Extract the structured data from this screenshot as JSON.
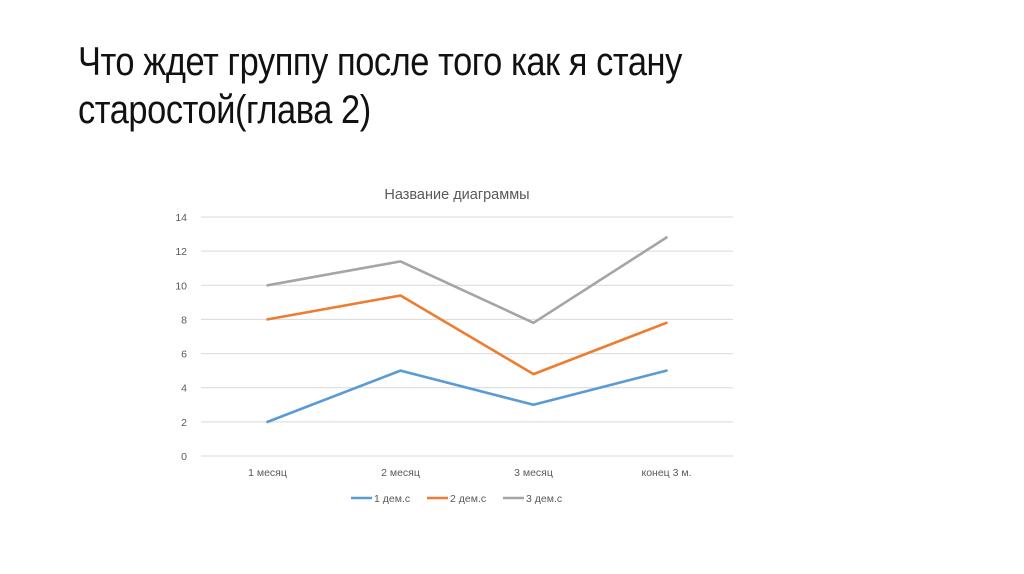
{
  "slide": {
    "title_line1": "Что ждет группу после того как я стану",
    "title_line2": "старостой(глава 2)"
  },
  "chart_data": {
    "type": "line",
    "title": "Название диаграммы",
    "xlabel": "",
    "ylabel": "",
    "categories": [
      "1 месяц",
      "2 месяц",
      "3 месяц",
      "конец 3 м."
    ],
    "series": [
      {
        "name": "1 дем.c",
        "color": "#5B9BD5",
        "values": [
          2,
          5,
          3,
          5
        ]
      },
      {
        "name": "2 дем.c",
        "color": "#ED7D31",
        "values": [
          8,
          9.4,
          4.8,
          7.8
        ]
      },
      {
        "name": "3 дем.c",
        "color": "#A5A5A5",
        "values": [
          10,
          11.4,
          7.8,
          12.8
        ]
      }
    ],
    "ylim": [
      0,
      14
    ],
    "yticks": [
      0,
      2,
      4,
      6,
      8,
      10,
      12,
      14
    ],
    "grid": true,
    "legend_position": "bottom"
  }
}
